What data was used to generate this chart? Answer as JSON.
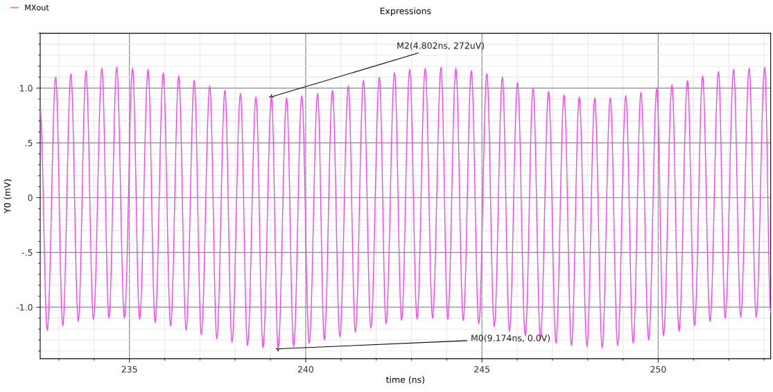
{
  "chart_data": {
    "type": "line",
    "title": "Expressions",
    "xlabel": "time (ns)",
    "ylabel": "Y0 (mV)",
    "x": [
      232.47,
      232.67,
      232.91,
      233.11,
      233.34,
      233.55,
      233.77,
      233.98,
      234.22,
      234.42,
      234.64,
      234.86,
      235.09,
      235.29,
      235.53,
      235.73,
      235.96,
      236.17,
      236.4,
      236.61,
      236.84,
      237.04,
      237.28,
      237.48,
      237.71,
      237.91,
      238.15,
      238.35,
      238.59,
      238.79,
      239.03,
      239.22,
      239.46,
      239.66,
      239.89,
      240.1,
      240.34,
      240.53,
      240.76,
      240.97,
      241.21,
      241.41,
      241.64,
      241.85,
      242.09,
      242.28,
      242.52,
      242.72,
      242.95,
      243.16,
      243.39,
      243.6,
      243.84,
      244.03,
      244.26,
      244.47,
      244.7,
      244.91,
      245.14,
      245.35,
      245.58,
      245.78,
      246.01,
      246.23,
      246.45,
      246.66,
      246.89,
      247.1,
      247.33,
      247.54,
      247.76,
      247.98,
      248.2,
      248.41,
      248.64,
      248.85,
      249.08,
      249.29,
      249.51,
      249.73,
      249.96,
      250.15,
      250.39,
      250.59,
      250.83,
      251.03,
      251.26,
      251.47,
      251.71,
      251.9,
      252.14,
      252.34,
      252.58,
      252.78,
      253.02,
      253.19
    ],
    "series": [
      {
        "name": "MXout",
        "color": "#ff40ff",
        "values": [
          0.8,
          -1.21,
          1.1,
          -1.17,
          1.13,
          -1.13,
          1.16,
          -1.11,
          1.18,
          -1.1,
          1.19,
          -1.1,
          1.18,
          -1.11,
          1.17,
          -1.14,
          1.14,
          -1.17,
          1.11,
          -1.21,
          1.07,
          -1.25,
          1.02,
          -1.29,
          0.98,
          -1.32,
          0.95,
          -1.35,
          0.92,
          -1.37,
          0.92,
          -1.38,
          0.91,
          -1.36,
          0.93,
          -1.33,
          0.95,
          -1.3,
          0.98,
          -1.27,
          1.02,
          -1.23,
          1.07,
          -1.19,
          1.1,
          -1.15,
          1.14,
          -1.12,
          1.17,
          -1.11,
          1.18,
          -1.1,
          1.19,
          -1.11,
          1.18,
          -1.12,
          1.16,
          -1.15,
          1.13,
          -1.18,
          1.1,
          -1.22,
          1.05,
          -1.26,
          1.0,
          -1.29,
          0.97,
          -1.33,
          0.94,
          -1.35,
          0.92,
          -1.36,
          0.91,
          -1.37,
          0.91,
          -1.35,
          0.93,
          -1.33,
          0.96,
          -1.3,
          1.0,
          -1.26,
          1.03,
          -1.22,
          1.07,
          -1.17,
          1.11,
          -1.13,
          1.15,
          -1.1,
          1.17,
          -1.09,
          1.18,
          -1.09,
          1.19,
          -1.05
        ]
      }
    ],
    "xlim": [
      232.47,
      253.19
    ],
    "ylim": [
      -1.47,
      1.5
    ],
    "xticks": [
      235,
      240,
      245,
      250
    ],
    "yticks": [
      {
        "value": 1.0,
        "label": "1.0"
      },
      {
        "value": 0.5,
        "label": ".5"
      },
      0,
      {
        "value": -0.5,
        "label": "-.5"
      },
      {
        "value": -1.0,
        "label": "-1.0"
      }
    ],
    "grid": true,
    "legend": "top left",
    "marker": "none",
    "line_style": "solid",
    "annotations": [
      {
        "text": "M2(4.802ns, 272uV)",
        "x": 239.03,
        "y": 0.92
      },
      {
        "text": "M0(9.174ns, 0.0V)",
        "x": 239.22,
        "y": -1.38
      }
    ]
  }
}
